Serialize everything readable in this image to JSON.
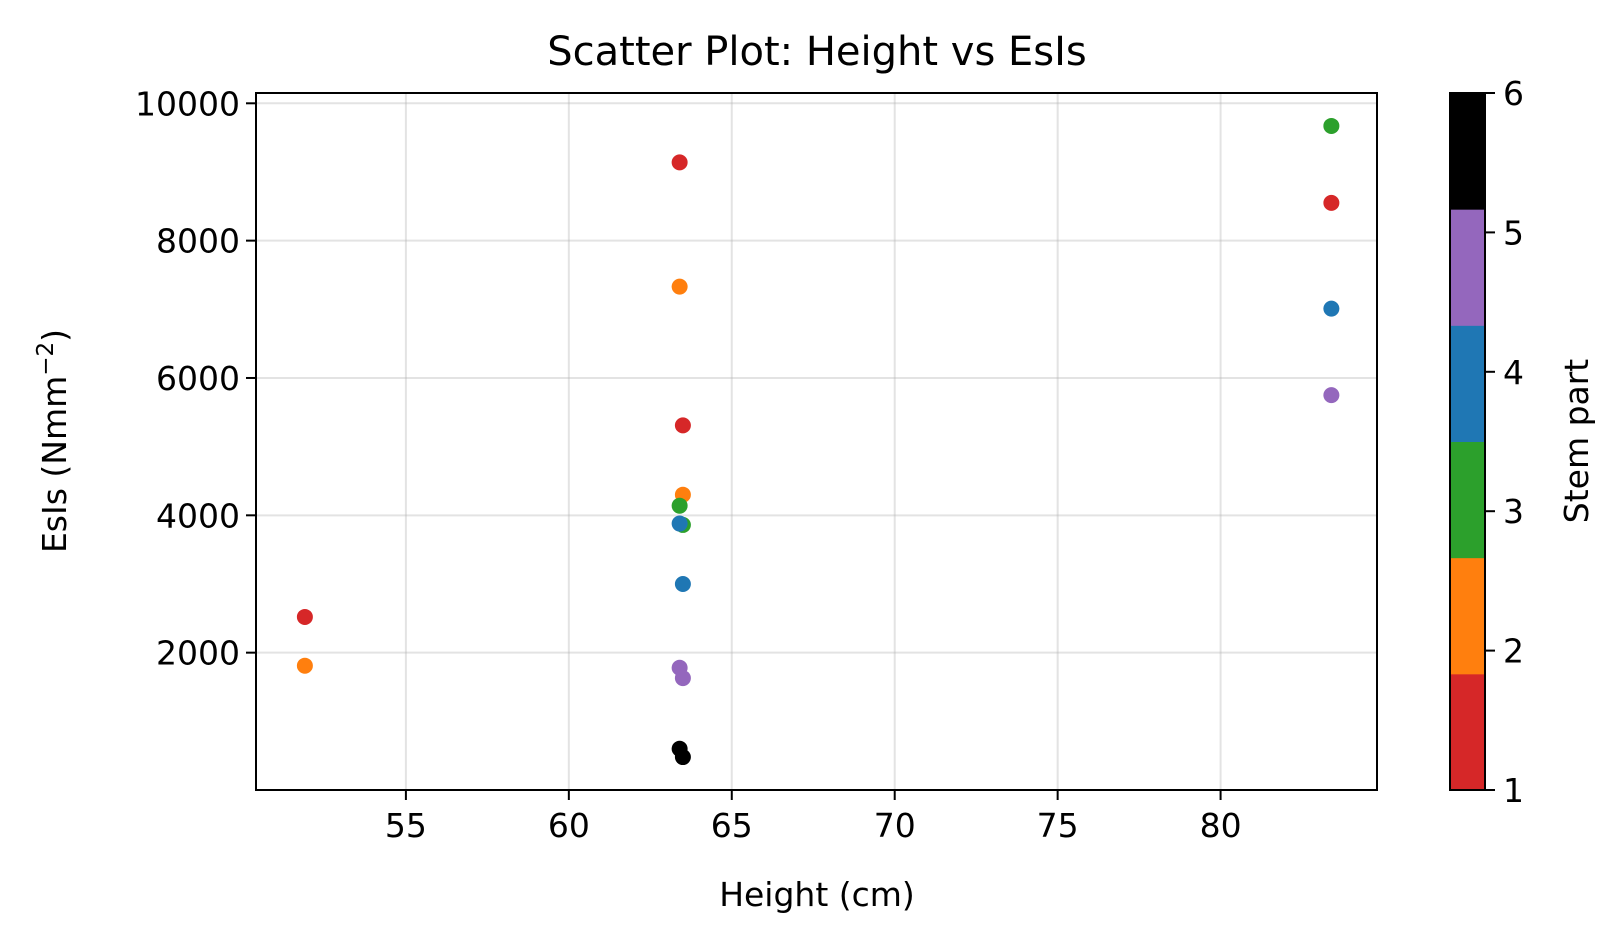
{
  "chart_data": {
    "type": "scatter",
    "title": "Scatter Plot: Height vs EsIs",
    "xlabel": "Height (cm)",
    "ylabel": "EsIs (Nmm",
    "ylabel_sup": "−2",
    "ylabel_close": ")",
    "xlim": [
      50.4,
      84.8
    ],
    "ylim": [
      0,
      10150
    ],
    "xticks": [
      "55",
      "60",
      "65",
      "70",
      "75",
      "80"
    ],
    "yticks": [
      "2000",
      "4000",
      "6000",
      "8000",
      "10000"
    ],
    "grid": true,
    "colorbar": {
      "label": "Stem part",
      "range": [
        1,
        6
      ],
      "ticks": [
        "1",
        "2",
        "3",
        "4",
        "5",
        "6"
      ],
      "colors": [
        "#d62728",
        "#ff7f0e",
        "#2ca02c",
        "#1f77b4",
        "#9467bd",
        "#000000"
      ]
    },
    "points": [
      {
        "x": 51.9,
        "y": 2520,
        "part": 1
      },
      {
        "x": 51.9,
        "y": 1810,
        "part": 2
      },
      {
        "x": 63.4,
        "y": 9140,
        "part": 1
      },
      {
        "x": 63.4,
        "y": 7330,
        "part": 2
      },
      {
        "x": 63.5,
        "y": 5310,
        "part": 1
      },
      {
        "x": 63.5,
        "y": 4300,
        "part": 2
      },
      {
        "x": 63.4,
        "y": 4140,
        "part": 3
      },
      {
        "x": 63.5,
        "y": 3860,
        "part": 3
      },
      {
        "x": 63.4,
        "y": 3880,
        "part": 4
      },
      {
        "x": 63.5,
        "y": 3000,
        "part": 4
      },
      {
        "x": 63.4,
        "y": 1780,
        "part": 5
      },
      {
        "x": 63.5,
        "y": 1630,
        "part": 5
      },
      {
        "x": 63.4,
        "y": 600,
        "part": 6
      },
      {
        "x": 63.5,
        "y": 480,
        "part": 6
      },
      {
        "x": 83.4,
        "y": 9670,
        "part": 3
      },
      {
        "x": 83.4,
        "y": 8550,
        "part": 1
      },
      {
        "x": 83.4,
        "y": 7010,
        "part": 4
      },
      {
        "x": 83.4,
        "y": 5750,
        "part": 5
      }
    ]
  }
}
